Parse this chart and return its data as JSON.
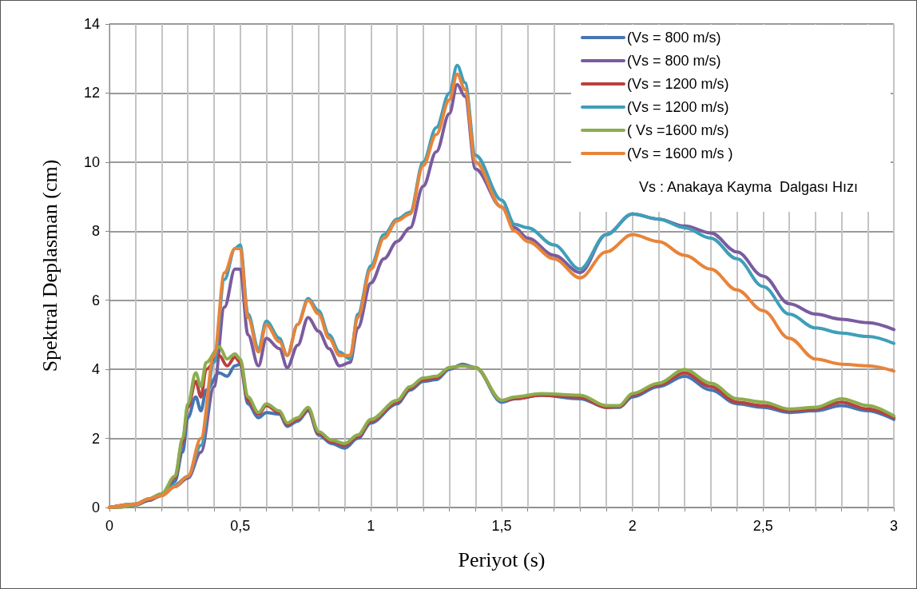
{
  "chart_data": {
    "type": "line",
    "xlabel": "Periyot (s)",
    "ylabel": "Spektral Deplasman (cm)",
    "annotations": [
      "Vs : Anakaya Kayma  Dalgası Hızı"
    ],
    "xlim": [
      0,
      3
    ],
    "ylim": [
      0,
      14
    ],
    "xticks": [
      0,
      {
        "value": 0.1,
        "label": null
      },
      {
        "value": 0.2,
        "label": null
      },
      {
        "value": 0.3,
        "label": null
      },
      {
        "value": 0.4,
        "label": null
      },
      {
        "value": 0.5,
        "label": "0,5"
      },
      {
        "value": 0.6,
        "label": null
      },
      {
        "value": 0.7,
        "label": null
      },
      {
        "value": 0.8,
        "label": null
      },
      {
        "value": 0.9,
        "label": null
      },
      1,
      {
        "value": 1.1,
        "label": null
      },
      {
        "value": 1.2,
        "label": null
      },
      {
        "value": 1.3,
        "label": null
      },
      {
        "value": 1.4,
        "label": null
      },
      {
        "value": 1.5,
        "label": "1,5"
      },
      {
        "value": 1.6,
        "label": null
      },
      {
        "value": 1.7,
        "label": null
      },
      {
        "value": 1.8,
        "label": null
      },
      {
        "value": 1.9,
        "label": null
      },
      2,
      {
        "value": 2.1,
        "label": null
      },
      {
        "value": 2.2,
        "label": null
      },
      {
        "value": 2.3,
        "label": null
      },
      {
        "value": 2.4,
        "label": null
      },
      {
        "value": 2.5,
        "label": "2,5"
      },
      {
        "value": 2.6,
        "label": null
      },
      {
        "value": 2.7,
        "label": null
      },
      {
        "value": 2.8,
        "label": null
      },
      {
        "value": 2.9,
        "label": null
      },
      3
    ],
    "yticks": [
      0,
      2,
      4,
      6,
      8,
      10,
      12,
      14
    ],
    "grid": true,
    "legend": "top right",
    "series": [
      {
        "name": "(Vs = 800 m/s)",
        "color": "#4575b4",
        "x": [
          0,
          0.05,
          0.1,
          0.15,
          0.2,
          0.25,
          0.28,
          0.3,
          0.33,
          0.35,
          0.37,
          0.42,
          0.45,
          0.48,
          0.5,
          0.53,
          0.57,
          0.6,
          0.65,
          0.68,
          0.72,
          0.76,
          0.8,
          0.85,
          0.9,
          0.95,
          1.0,
          1.1,
          1.15,
          1.2,
          1.25,
          1.3,
          1.35,
          1.4,
          1.5,
          1.55,
          1.65,
          1.8,
          1.9,
          1.95,
          2.0,
          2.1,
          2.2,
          2.3,
          2.4,
          2.5,
          2.6,
          2.7,
          2.8,
          2.9,
          3.0
        ],
        "values": [
          0,
          0.02,
          0.07,
          0.2,
          0.35,
          0.75,
          1.6,
          2.6,
          3.2,
          2.8,
          3.4,
          3.9,
          3.8,
          4.1,
          4.15,
          3.0,
          2.6,
          2.75,
          2.7,
          2.35,
          2.5,
          2.8,
          2.1,
          1.85,
          1.72,
          2.0,
          2.45,
          3.0,
          3.4,
          3.65,
          3.7,
          4.0,
          4.15,
          4.05,
          3.05,
          3.15,
          3.25,
          3.15,
          2.9,
          2.9,
          3.2,
          3.5,
          3.8,
          3.4,
          3.0,
          2.9,
          2.75,
          2.8,
          2.95,
          2.8,
          2.55
        ]
      },
      {
        "name": "(Vs = 800 m/s)",
        "color": "#7a5c9e",
        "x": [
          0,
          0.1,
          0.15,
          0.2,
          0.25,
          0.3,
          0.35,
          0.4,
          0.44,
          0.48,
          0.5,
          0.53,
          0.57,
          0.6,
          0.65,
          0.68,
          0.72,
          0.76,
          0.8,
          0.84,
          0.88,
          0.92,
          0.95,
          1.0,
          1.05,
          1.1,
          1.15,
          1.2,
          1.25,
          1.3,
          1.33,
          1.36,
          1.4,
          1.5,
          1.55,
          1.6,
          1.7,
          1.8,
          1.9,
          2.0,
          2.1,
          2.2,
          2.3,
          2.4,
          2.5,
          2.6,
          2.7,
          2.8,
          2.9,
          3.0
        ],
        "values": [
          0,
          0.1,
          0.22,
          0.35,
          0.6,
          0.85,
          1.6,
          3.5,
          5.8,
          6.9,
          6.9,
          5.0,
          4.1,
          4.9,
          4.6,
          4.05,
          4.7,
          5.5,
          5.1,
          4.6,
          4.1,
          4.2,
          5.2,
          6.5,
          7.2,
          7.7,
          8.1,
          9.3,
          10.3,
          11.4,
          12.25,
          11.9,
          9.8,
          8.7,
          8.1,
          7.8,
          7.3,
          6.8,
          7.9,
          8.5,
          8.35,
          8.15,
          7.95,
          7.4,
          6.7,
          5.9,
          5.6,
          5.45,
          5.35,
          5.15
        ]
      },
      {
        "name": "(Vs = 1200 m/s)",
        "color": "#b9413e",
        "x": [
          0,
          0.05,
          0.1,
          0.15,
          0.2,
          0.25,
          0.28,
          0.3,
          0.33,
          0.35,
          0.37,
          0.42,
          0.45,
          0.48,
          0.5,
          0.53,
          0.57,
          0.6,
          0.65,
          0.68,
          0.72,
          0.76,
          0.8,
          0.85,
          0.9,
          0.95,
          1.0,
          1.1,
          1.15,
          1.2,
          1.25,
          1.3,
          1.35,
          1.4,
          1.5,
          1.55,
          1.65,
          1.8,
          1.9,
          1.95,
          2.0,
          2.1,
          2.2,
          2.3,
          2.4,
          2.5,
          2.6,
          2.7,
          2.8,
          2.9,
          3.0
        ],
        "values": [
          0,
          0.02,
          0.08,
          0.22,
          0.38,
          0.85,
          1.9,
          2.9,
          3.65,
          3.2,
          4.0,
          4.4,
          4.1,
          4.35,
          4.2,
          3.1,
          2.7,
          2.95,
          2.75,
          2.4,
          2.55,
          2.85,
          2.15,
          1.9,
          1.8,
          2.05,
          2.5,
          3.05,
          3.45,
          3.7,
          3.75,
          4.05,
          4.1,
          4.05,
          3.1,
          3.15,
          3.25,
          3.2,
          2.9,
          2.92,
          3.25,
          3.55,
          3.9,
          3.5,
          3.05,
          2.95,
          2.8,
          2.85,
          3.05,
          2.85,
          2.6
        ]
      },
      {
        "name": "(Vs = 1200 m/s)",
        "color": "#3f9fb8",
        "x": [
          0,
          0.1,
          0.15,
          0.2,
          0.25,
          0.3,
          0.35,
          0.4,
          0.44,
          0.48,
          0.5,
          0.53,
          0.57,
          0.6,
          0.65,
          0.68,
          0.72,
          0.76,
          0.8,
          0.84,
          0.88,
          0.92,
          0.95,
          1.0,
          1.05,
          1.1,
          1.15,
          1.2,
          1.25,
          1.3,
          1.33,
          1.36,
          1.4,
          1.5,
          1.55,
          1.6,
          1.7,
          1.8,
          1.9,
          2.0,
          2.1,
          2.2,
          2.3,
          2.4,
          2.5,
          2.6,
          2.7,
          2.8,
          2.9,
          3.0
        ],
        "values": [
          0,
          0.1,
          0.25,
          0.4,
          0.65,
          0.9,
          1.8,
          4.2,
          6.6,
          7.5,
          7.6,
          5.6,
          4.6,
          5.4,
          4.9,
          4.4,
          5.3,
          6.05,
          5.7,
          5.0,
          4.5,
          4.3,
          5.6,
          7.0,
          7.9,
          8.35,
          8.55,
          10.0,
          11.0,
          12.0,
          12.8,
          12.3,
          10.2,
          8.9,
          8.2,
          8.1,
          7.6,
          6.9,
          7.9,
          8.5,
          8.35,
          8.1,
          7.8,
          7.2,
          6.4,
          5.6,
          5.2,
          5.05,
          4.95,
          4.75
        ]
      },
      {
        "name": "( Vs =1600 m/s)",
        "color": "#8cad4e",
        "x": [
          0,
          0.05,
          0.1,
          0.15,
          0.2,
          0.25,
          0.28,
          0.3,
          0.33,
          0.35,
          0.37,
          0.42,
          0.45,
          0.48,
          0.5,
          0.53,
          0.57,
          0.6,
          0.65,
          0.68,
          0.72,
          0.76,
          0.8,
          0.85,
          0.9,
          0.95,
          1.0,
          1.1,
          1.15,
          1.2,
          1.25,
          1.3,
          1.35,
          1.4,
          1.5,
          1.55,
          1.65,
          1.8,
          1.9,
          1.95,
          2.0,
          2.1,
          2.2,
          2.3,
          2.4,
          2.5,
          2.6,
          2.7,
          2.8,
          2.9,
          3.0
        ],
        "values": [
          0,
          0.02,
          0.08,
          0.25,
          0.4,
          0.9,
          2.0,
          3.0,
          3.9,
          3.5,
          4.2,
          4.65,
          4.3,
          4.45,
          4.3,
          3.2,
          2.75,
          3.0,
          2.8,
          2.45,
          2.6,
          2.9,
          2.2,
          1.95,
          1.85,
          2.1,
          2.55,
          3.1,
          3.5,
          3.75,
          3.8,
          4.05,
          4.1,
          4.05,
          3.1,
          3.2,
          3.3,
          3.25,
          2.95,
          2.95,
          3.3,
          3.6,
          4.0,
          3.6,
          3.15,
          3.05,
          2.85,
          2.9,
          3.15,
          2.95,
          2.65
        ]
      },
      {
        "name": "(Vs = 1600 m/s )",
        "color": "#e8843a",
        "x": [
          0,
          0.1,
          0.15,
          0.2,
          0.25,
          0.3,
          0.35,
          0.4,
          0.44,
          0.48,
          0.5,
          0.53,
          0.57,
          0.6,
          0.65,
          0.68,
          0.72,
          0.76,
          0.8,
          0.84,
          0.88,
          0.92,
          0.95,
          1.0,
          1.05,
          1.1,
          1.15,
          1.2,
          1.25,
          1.3,
          1.33,
          1.36,
          1.4,
          1.5,
          1.55,
          1.6,
          1.7,
          1.8,
          1.9,
          2.0,
          2.1,
          2.2,
          2.3,
          2.4,
          2.5,
          2.6,
          2.7,
          2.8,
          2.9,
          3.0
        ],
        "values": [
          0,
          0.1,
          0.25,
          0.35,
          0.6,
          0.9,
          2.0,
          4.4,
          6.8,
          7.5,
          7.5,
          5.5,
          4.5,
          5.3,
          4.8,
          4.4,
          5.3,
          6.0,
          5.6,
          4.9,
          4.4,
          4.4,
          5.5,
          6.9,
          7.8,
          8.3,
          8.5,
          9.9,
          10.8,
          11.8,
          12.55,
          12.1,
          10.0,
          8.7,
          8.0,
          7.7,
          7.2,
          6.65,
          7.4,
          7.9,
          7.7,
          7.3,
          6.9,
          6.3,
          5.7,
          4.9,
          4.3,
          4.15,
          4.1,
          3.95
        ]
      }
    ]
  }
}
